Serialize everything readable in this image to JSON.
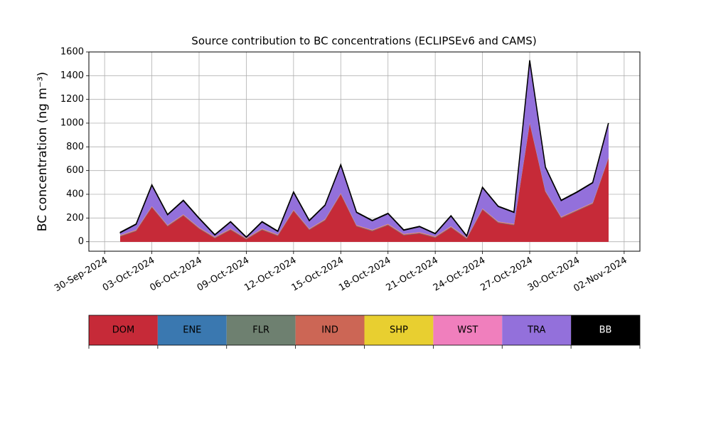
{
  "chart_data": {
    "type": "stacked_area",
    "title": "Source contribution to BC concentrations (ECLIPSEv6 and CAMS)",
    "y_label": "BC concentration (ng m⁻³)",
    "x": [
      "2024-10-01",
      "2024-10-02",
      "2024-10-03",
      "2024-10-04",
      "2024-10-05",
      "2024-10-06",
      "2024-10-07",
      "2024-10-08",
      "2024-10-09",
      "2024-10-10",
      "2024-10-11",
      "2024-10-12",
      "2024-10-13",
      "2024-10-14",
      "2024-10-15",
      "2024-10-16",
      "2024-10-17",
      "2024-10-18",
      "2024-10-19",
      "2024-10-20",
      "2024-10-21",
      "2024-10-22",
      "2024-10-23",
      "2024-10-24",
      "2024-10-25",
      "2024-10-26",
      "2024-10-27",
      "2024-10-28",
      "2024-10-29",
      "2024-10-30",
      "2024-10-31",
      "2024-11-01"
    ],
    "series": [
      {
        "name": "DOM",
        "color": "#c62a38",
        "values": [
          45,
          90,
          290,
          130,
          220,
          110,
          30,
          100,
          20,
          100,
          50,
          260,
          100,
          180,
          400,
          130,
          90,
          140,
          55,
          70,
          35,
          120,
          25,
          270,
          160,
          140,
          1000,
          420,
          200,
          260,
          320,
          700
        ]
      },
      {
        "name": "ENE",
        "color": "#3a78b0",
        "values": [
          2,
          2,
          2,
          2,
          2,
          2,
          2,
          2,
          2,
          2,
          2,
          2,
          2,
          2,
          2,
          2,
          2,
          2,
          2,
          2,
          2,
          2,
          2,
          2,
          2,
          2,
          2,
          2,
          2,
          2,
          2,
          2
        ]
      },
      {
        "name": "FLR",
        "color": "#6e8070",
        "values": [
          1,
          1,
          1,
          1,
          1,
          1,
          1,
          1,
          1,
          1,
          1,
          1,
          1,
          1,
          1,
          1,
          1,
          1,
          1,
          1,
          1,
          1,
          1,
          1,
          1,
          1,
          1,
          1,
          1,
          1,
          1,
          1
        ]
      },
      {
        "name": "IND",
        "color": "#cc6655",
        "values": [
          5,
          5,
          5,
          5,
          5,
          5,
          5,
          5,
          5,
          5,
          5,
          5,
          5,
          5,
          5,
          5,
          5,
          5,
          5,
          5,
          5,
          5,
          5,
          5,
          5,
          5,
          5,
          5,
          5,
          5,
          5,
          5
        ]
      },
      {
        "name": "SHP",
        "color": "#e8cf30",
        "values": [
          1,
          1,
          1,
          1,
          1,
          1,
          1,
          1,
          1,
          1,
          1,
          1,
          1,
          1,
          1,
          1,
          1,
          1,
          1,
          1,
          1,
          1,
          1,
          1,
          1,
          1,
          1,
          1,
          1,
          1,
          1,
          1
        ]
      },
      {
        "name": "WST",
        "color": "#f07fbd",
        "values": [
          3,
          3,
          3,
          3,
          3,
          3,
          3,
          3,
          3,
          3,
          3,
          3,
          3,
          3,
          3,
          3,
          3,
          3,
          3,
          3,
          3,
          3,
          3,
          3,
          3,
          3,
          3,
          3,
          3,
          3,
          3,
          3
        ]
      },
      {
        "name": "TRA",
        "color": "#9370db",
        "values": [
          20,
          45,
          175,
          85,
          115,
          75,
          15,
          55,
          5,
          55,
          25,
          145,
          65,
          115,
          235,
          105,
          75,
          85,
          30,
          45,
          20,
          85,
          10,
          175,
          125,
          95,
          515,
          195,
          135,
          145,
          165,
          285
        ]
      },
      {
        "name": "BB",
        "color": "#000000",
        "values": [
          3,
          3,
          3,
          3,
          3,
          3,
          3,
          3,
          3,
          3,
          3,
          3,
          3,
          3,
          3,
          3,
          3,
          3,
          3,
          3,
          3,
          3,
          3,
          3,
          3,
          3,
          3,
          3,
          3,
          3,
          3,
          3
        ]
      }
    ],
    "xlim": [
      "2024-09-29",
      "2024-11-03"
    ],
    "xticks": [
      {
        "value": "2024-09-30",
        "label": "30-Sep-2024"
      },
      {
        "value": "2024-10-03",
        "label": "03-Oct-2024"
      },
      {
        "value": "2024-10-06",
        "label": "06-Oct-2024"
      },
      {
        "value": "2024-10-09",
        "label": "09-Oct-2024"
      },
      {
        "value": "2024-10-12",
        "label": "12-Oct-2024"
      },
      {
        "value": "2024-10-15",
        "label": "15-Oct-2024"
      },
      {
        "value": "2024-10-18",
        "label": "18-Oct-2024"
      },
      {
        "value": "2024-10-21",
        "label": "21-Oct-2024"
      },
      {
        "value": "2024-10-24",
        "label": "24-Oct-2024"
      },
      {
        "value": "2024-10-27",
        "label": "27-Oct-2024"
      },
      {
        "value": "2024-10-30",
        "label": "30-Oct-2024"
      },
      {
        "value": "2024-11-02",
        "label": "02-Nov-2024"
      }
    ],
    "ylim": [
      -80,
      1600
    ],
    "yticks": [
      0,
      200,
      400,
      600,
      800,
      1000,
      1200,
      1400,
      1600
    ],
    "grid": true,
    "legend": "bottom"
  }
}
